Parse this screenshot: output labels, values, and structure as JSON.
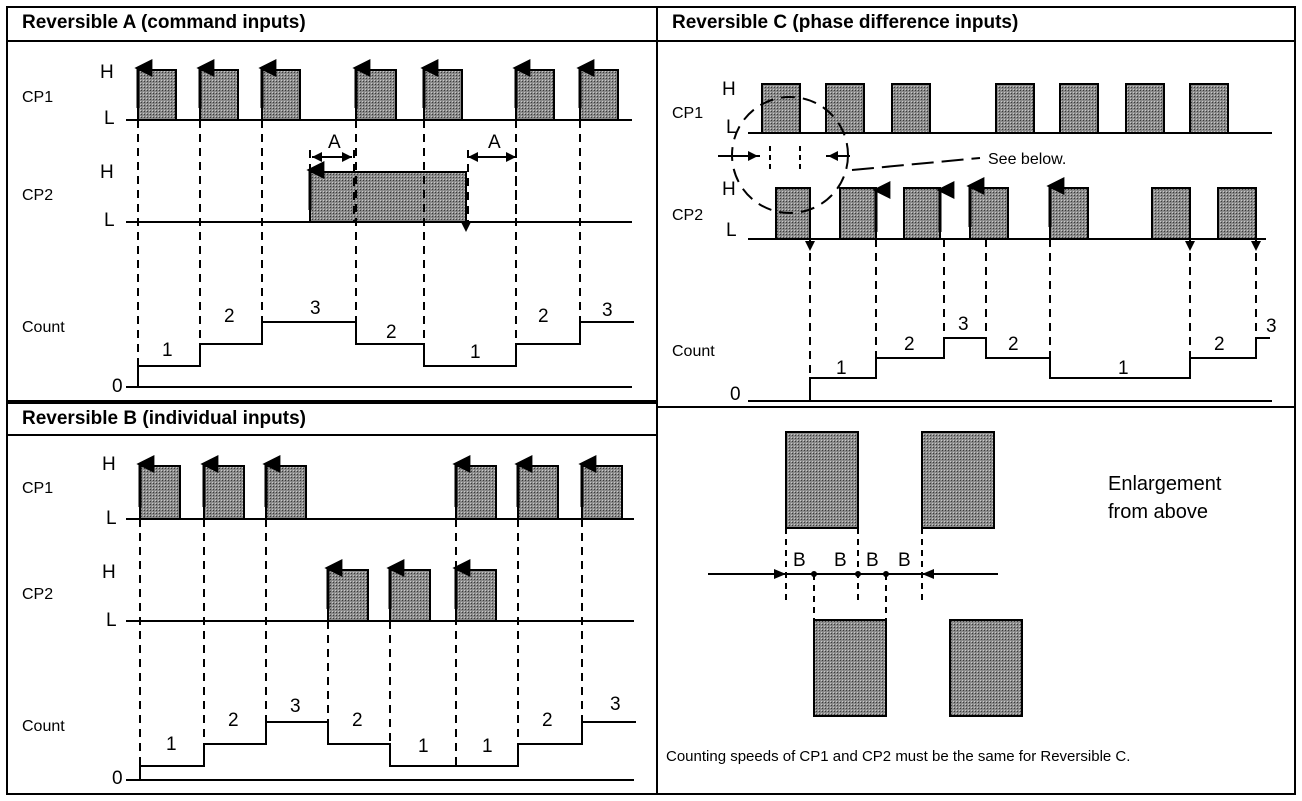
{
  "panels": {
    "a": {
      "title": "Reversible A (command inputs)",
      "cp1": "CP1",
      "cp2": "CP2",
      "count": "Count",
      "h": "H",
      "l": "L",
      "zero": "0",
      "gap": "A",
      "steps": [
        "1",
        "2",
        "3",
        "2",
        "1",
        "2",
        "3"
      ]
    },
    "b": {
      "title": "Reversible B (individual inputs)",
      "cp1": "CP1",
      "cp2": "CP2",
      "count": "Count",
      "h": "H",
      "l": "L",
      "zero": "0",
      "steps": [
        "1",
        "2",
        "3",
        "2",
        "1",
        "1",
        "2",
        "3"
      ]
    },
    "c": {
      "title": "Reversible C (phase difference inputs)",
      "cp1": "CP1",
      "cp2": "CP2",
      "count": "Count",
      "h": "H",
      "l": "L",
      "zero": "0",
      "see_below": "See below.",
      "steps": [
        "1",
        "2",
        "3",
        "2",
        "1",
        "2",
        "3"
      ],
      "gap": "B",
      "enlargement": "Enlargement from above",
      "note": "Counting speeds of CP1 and CP2 must be the same for Reversible C."
    }
  },
  "colors": {
    "pulse_fill": "#7a7a7a",
    "line": "#000000"
  }
}
